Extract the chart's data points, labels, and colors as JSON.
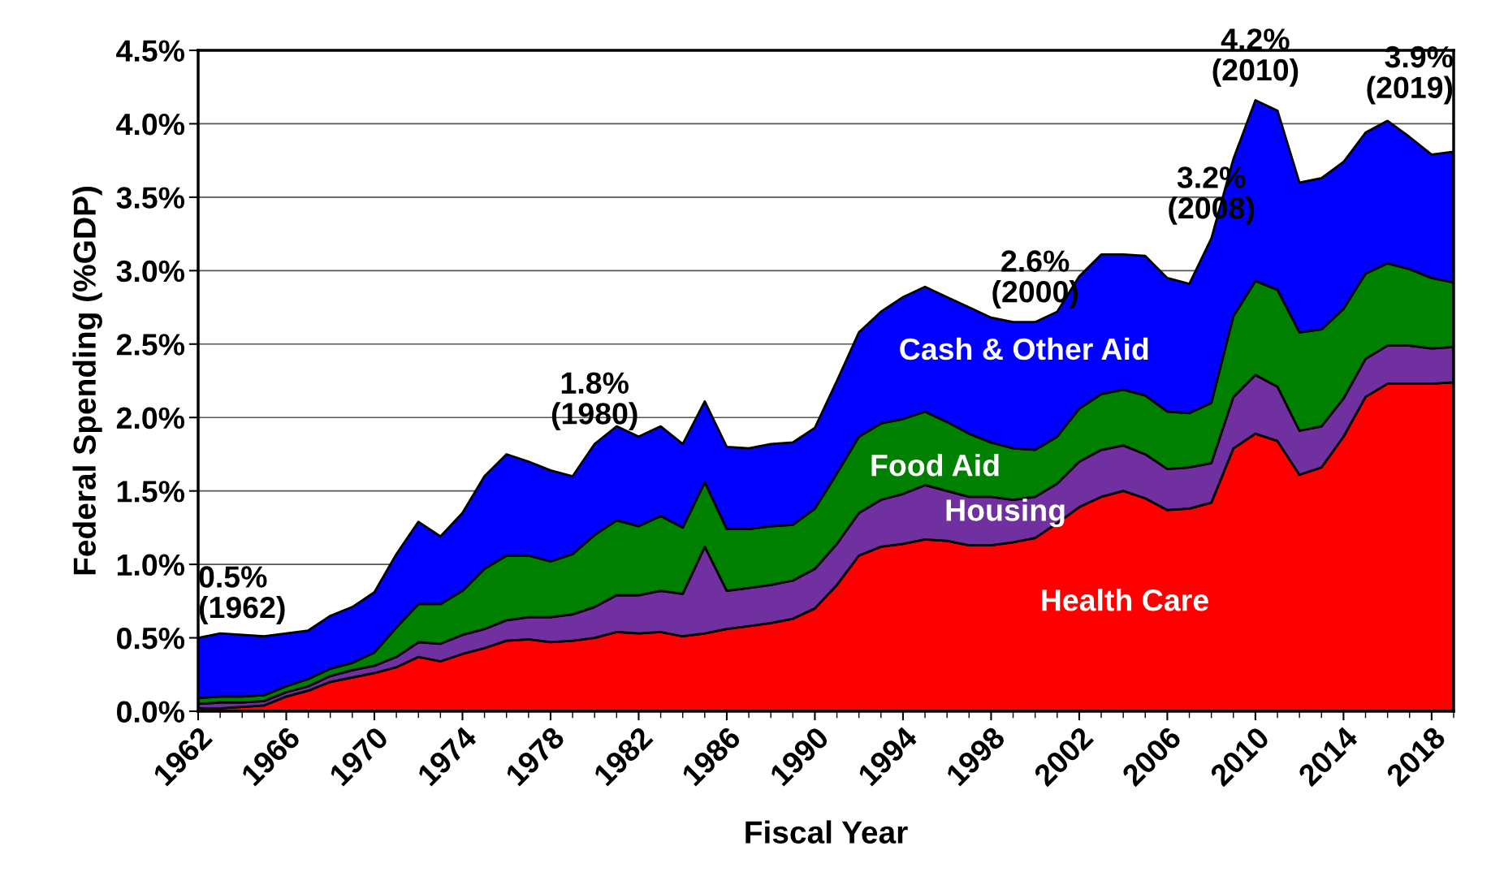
{
  "chart_data": {
    "type": "area",
    "stacked": true,
    "xlabel": "Fiscal Year",
    "ylabel": "Federal Spending (%GDP)",
    "x": [
      1962,
      1963,
      1964,
      1965,
      1966,
      1967,
      1968,
      1969,
      1970,
      1971,
      1972,
      1973,
      1974,
      1975,
      1976,
      1977,
      1978,
      1979,
      1980,
      1981,
      1982,
      1983,
      1984,
      1985,
      1986,
      1987,
      1988,
      1989,
      1990,
      1991,
      1992,
      1993,
      1994,
      1995,
      1996,
      1997,
      1998,
      1999,
      2000,
      2001,
      2002,
      2003,
      2004,
      2005,
      2006,
      2007,
      2008,
      2009,
      2010,
      2011,
      2012,
      2013,
      2014,
      2015,
      2016,
      2017,
      2018,
      2019
    ],
    "series": [
      {
        "name": "Health Care",
        "color": "#ff0000",
        "values": [
          0.02,
          0.02,
          0.03,
          0.04,
          0.1,
          0.14,
          0.2,
          0.23,
          0.26,
          0.3,
          0.37,
          0.34,
          0.39,
          0.43,
          0.48,
          0.49,
          0.47,
          0.48,
          0.5,
          0.54,
          0.53,
          0.54,
          0.51,
          0.53,
          0.56,
          0.58,
          0.6,
          0.63,
          0.7,
          0.86,
          1.06,
          1.12,
          1.14,
          1.17,
          1.16,
          1.13,
          1.13,
          1.15,
          1.18,
          1.28,
          1.39,
          1.46,
          1.5,
          1.45,
          1.37,
          1.38,
          1.42,
          1.79,
          1.89,
          1.84,
          1.61,
          1.66,
          1.87,
          2.14,
          2.23,
          2.23,
          2.23,
          2.24
        ]
      },
      {
        "name": "Housing",
        "color": "#7030a0",
        "values": [
          0.03,
          0.04,
          0.03,
          0.03,
          0.03,
          0.03,
          0.04,
          0.05,
          0.05,
          0.07,
          0.1,
          0.12,
          0.13,
          0.13,
          0.14,
          0.15,
          0.17,
          0.18,
          0.21,
          0.25,
          0.26,
          0.28,
          0.29,
          0.59,
          0.26,
          0.26,
          0.26,
          0.26,
          0.27,
          0.28,
          0.29,
          0.32,
          0.34,
          0.37,
          0.34,
          0.33,
          0.33,
          0.29,
          0.28,
          0.27,
          0.31,
          0.32,
          0.31,
          0.3,
          0.28,
          0.28,
          0.27,
          0.35,
          0.4,
          0.37,
          0.3,
          0.28,
          0.26,
          0.26,
          0.26,
          0.26,
          0.24,
          0.24
        ]
      },
      {
        "name": "Food Aid",
        "color": "#008000",
        "values": [
          0.04,
          0.04,
          0.04,
          0.04,
          0.04,
          0.05,
          0.05,
          0.05,
          0.09,
          0.2,
          0.26,
          0.27,
          0.3,
          0.41,
          0.44,
          0.42,
          0.38,
          0.41,
          0.49,
          0.51,
          0.47,
          0.51,
          0.45,
          0.44,
          0.42,
          0.4,
          0.4,
          0.38,
          0.41,
          0.48,
          0.52,
          0.52,
          0.51,
          0.5,
          0.47,
          0.43,
          0.37,
          0.35,
          0.32,
          0.32,
          0.36,
          0.38,
          0.38,
          0.4,
          0.39,
          0.37,
          0.41,
          0.55,
          0.64,
          0.66,
          0.67,
          0.66,
          0.61,
          0.58,
          0.56,
          0.52,
          0.48,
          0.44
        ]
      },
      {
        "name": "Cash & Other Aid",
        "color": "#0000ff",
        "values": [
          0.41,
          0.43,
          0.42,
          0.4,
          0.36,
          0.33,
          0.36,
          0.38,
          0.41,
          0.5,
          0.56,
          0.46,
          0.53,
          0.63,
          0.69,
          0.64,
          0.62,
          0.53,
          0.62,
          0.64,
          0.61,
          0.61,
          0.57,
          0.55,
          0.56,
          0.55,
          0.56,
          0.56,
          0.55,
          0.63,
          0.71,
          0.76,
          0.83,
          0.85,
          0.85,
          0.86,
          0.85,
          0.86,
          0.87,
          0.85,
          0.9,
          0.95,
          0.92,
          0.95,
          0.91,
          0.88,
          1.12,
          1.07,
          1.23,
          1.22,
          1.02,
          1.03,
          1.0,
          0.96,
          0.97,
          0.9,
          0.84,
          0.89
        ]
      }
    ],
    "xlim": [
      1962,
      2019
    ],
    "xticks": [
      1962,
      1966,
      1970,
      1974,
      1978,
      1982,
      1986,
      1990,
      1994,
      1998,
      2002,
      2006,
      2010,
      2014,
      2018
    ],
    "ylim": [
      0,
      4.5
    ],
    "yticks": [
      {
        "value": 0,
        "label": "0.0%"
      },
      {
        "value": 0.5,
        "label": "0.5%"
      },
      {
        "value": 1.0,
        "label": "1.0%"
      },
      {
        "value": 1.5,
        "label": "1.5%"
      },
      {
        "value": 2.0,
        "label": "2.0%"
      },
      {
        "value": 2.5,
        "label": "2.5%"
      },
      {
        "value": 3.0,
        "label": "3.0%"
      },
      {
        "value": 3.5,
        "label": "3.5%"
      },
      {
        "value": 4.0,
        "label": "4.0%"
      },
      {
        "value": 4.5,
        "label": "4.5%"
      }
    ],
    "grid": "y",
    "legend": false,
    "annotations": [
      {
        "text": "0.5%\n(1962)",
        "x": 1962,
        "y": 0.5
      },
      {
        "text": "1.8%\n(1980)",
        "x": 1980,
        "y": 1.82
      },
      {
        "text": "2.6%\n(2000)",
        "x": 2000,
        "y": 2.65
      },
      {
        "text": "3.2%\n(2008)",
        "x": 2008,
        "y": 3.22
      },
      {
        "text": "4.2%\n(2010)",
        "x": 2010,
        "y": 4.16
      },
      {
        "text": "3.9%\n(2019)",
        "x": 2019,
        "y": 3.81
      }
    ]
  }
}
